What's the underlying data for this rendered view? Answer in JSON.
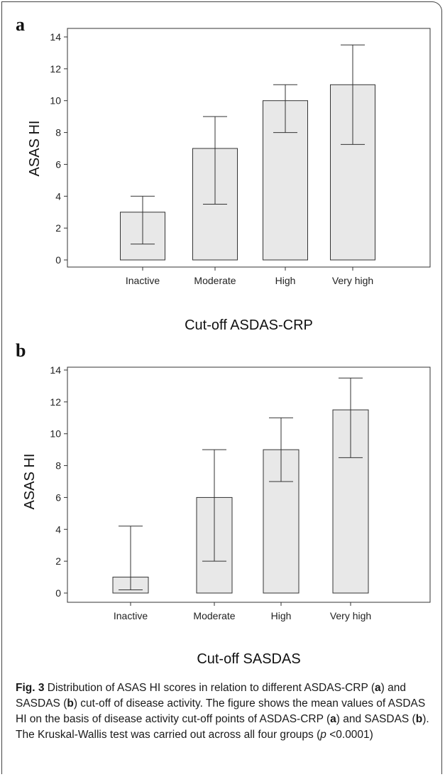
{
  "caption": {
    "label": "Fig. 3",
    "part1": " Distribution of ASAS HI scores in relation to different ASDAS-CRP (",
    "a1": "a",
    "part2": ") and SASDAS (",
    "b1": "b",
    "part3": ") cut-off of disease activity. The figure shows the mean values of ASDAS HI on the basis of disease activity cut-off points of ASDAS-CRP (",
    "a2": "a",
    "part4": ") and SASDAS (",
    "b2": "b",
    "part5": "). The Kruskal-Wallis test was carried out across all four groups (",
    "p": "p",
    "part6": " <0.0001)"
  },
  "chart_data": [
    {
      "panel": "a",
      "type": "bar",
      "categories": [
        "Inactive",
        "Moderate",
        "High",
        "Very high"
      ],
      "values": [
        3,
        7,
        10,
        11
      ],
      "error_low": [
        1,
        3.5,
        8,
        7.25
      ],
      "error_high": [
        4,
        9,
        11,
        13.5
      ],
      "xlabel": "Cut-off ASDAS-CRP",
      "ylabel": "ASAS HI",
      "ylim": [
        0,
        14
      ],
      "yticks": [
        0,
        2,
        4,
        6,
        8,
        10,
        12,
        14
      ],
      "grid": false,
      "bar_color": "#e8e8e8"
    },
    {
      "panel": "b",
      "type": "bar",
      "categories": [
        "Inactive",
        "Moderate",
        "High",
        "Very high"
      ],
      "values": [
        1,
        6,
        9,
        11.5
      ],
      "error_low": [
        0.2,
        2,
        7,
        8.5
      ],
      "error_high": [
        4.2,
        9,
        11,
        13.5
      ],
      "xlabel": "Cut-off SASDAS",
      "ylabel": "ASAS HI",
      "ylim": [
        0,
        14
      ],
      "yticks": [
        0,
        2,
        4,
        6,
        8,
        10,
        12,
        14
      ],
      "grid": false,
      "bar_color": "#e8e8e8"
    }
  ]
}
